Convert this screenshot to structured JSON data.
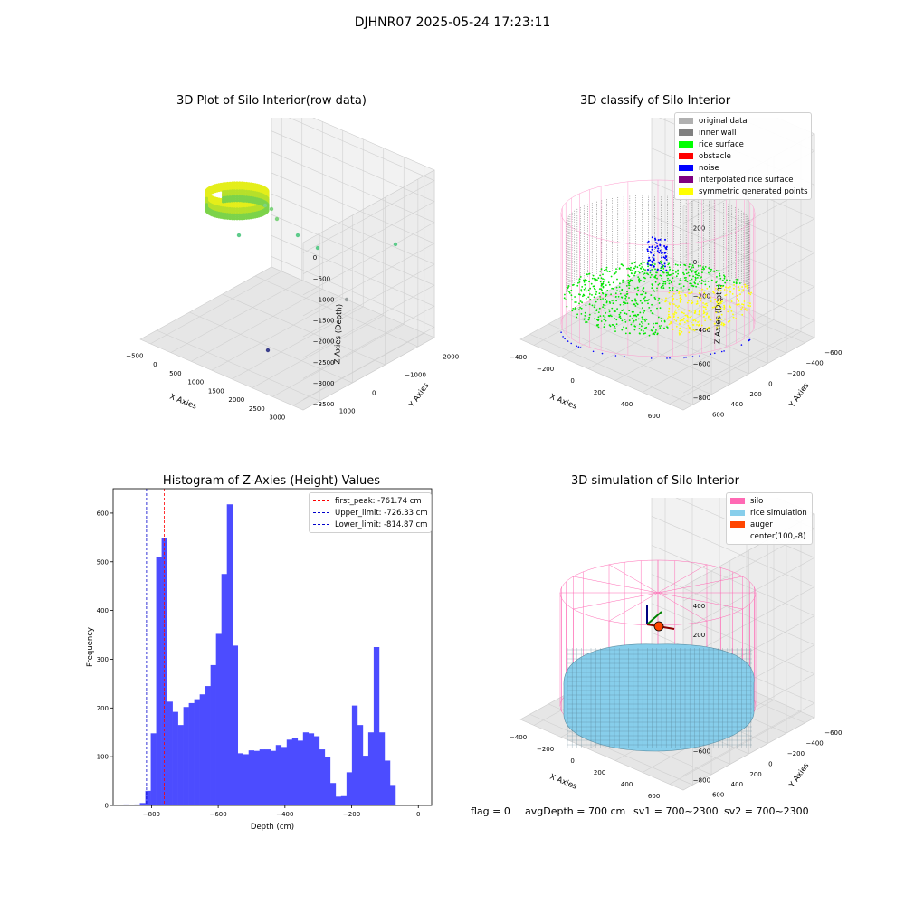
{
  "figure": {
    "suptitle": "DJHNR07 2025-05-24 17:23:11"
  },
  "panels": {
    "raw": {
      "title": "3D Plot of Silo Interior(row data)",
      "xlabel": "X Axies",
      "ylabel": "Y Axies",
      "zlabel": "Z Axies (Depth)",
      "x_ticks": [
        "−500",
        "0",
        "500",
        "1000",
        "1500",
        "2000",
        "2500",
        "3000"
      ],
      "y_ticks": [
        "−2000",
        "−1000",
        "0",
        "1000"
      ],
      "z_ticks": [
        "0",
        "−500",
        "−1000",
        "−1500",
        "−2000",
        "−2500",
        "−3000",
        "−3500"
      ]
    },
    "classify": {
      "title": "3D classify of Silo Interior",
      "xlabel": "X Axies",
      "ylabel": "Y Axies",
      "zlabel": "Z Axies (Depth)",
      "x_ticks": [
        "−400",
        "−200",
        "0",
        "200",
        "400",
        "600"
      ],
      "y_ticks": [
        "−600",
        "−400",
        "−200",
        "0",
        "200",
        "400",
        "600"
      ],
      "z_ticks": [
        "200",
        "0",
        "−200",
        "−400",
        "−600",
        "−800"
      ],
      "legend": [
        {
          "label": "original data",
          "color": "#b0b0b0"
        },
        {
          "label": "inner wall",
          "color": "#808080"
        },
        {
          "label": "rice surface",
          "color": "#00ff00"
        },
        {
          "label": "obstacle",
          "color": "#ff0000"
        },
        {
          "label": "noise",
          "color": "#0000ff"
        },
        {
          "label": "interpolated rice surface",
          "color": "#800080"
        },
        {
          "label": "symmetric generated points",
          "color": "#ffff00"
        }
      ]
    },
    "simulation": {
      "title": "3D simulation of Silo Interior",
      "xlabel": "X Axies",
      "ylabel": "Y Axies",
      "zlabel": "Z Axies (Depth)",
      "x_ticks": [
        "−400",
        "−200",
        "0",
        "200",
        "400",
        "600"
      ],
      "y_ticks": [
        "−600",
        "−400",
        "−200",
        "0",
        "200",
        "400",
        "600"
      ],
      "z_ticks": [
        "400",
        "200",
        "0",
        "−200",
        "−400",
        "−600",
        "−800"
      ],
      "legend": [
        {
          "label": "silo",
          "color": "#ff69b4"
        },
        {
          "label": "rice simulation",
          "color": "#87ceeb"
        },
        {
          "label": "auger",
          "color": "#ff4500"
        },
        {
          "label": "center(100,-8)",
          "color": ""
        }
      ],
      "footer": {
        "flag": "flag = 0",
        "avg": "avgDepth = 700 cm",
        "sv1": "sv1 = 700~2300",
        "sv2": "sv2 = 700~2300"
      }
    }
  },
  "chart_data": [
    {
      "type": "bar",
      "title": "Histogram of Z-Axies (Height) Values",
      "xlabel": "Depth (cm)",
      "ylabel": "Frequency",
      "xlim": [
        -915,
        40
      ],
      "ylim": [
        0,
        650
      ],
      "x_ticks": [
        -800,
        -600,
        -400,
        -200,
        0
      ],
      "y_ticks": [
        0,
        100,
        200,
        300,
        400,
        500,
        600
      ],
      "bar_color": "#4c4cff",
      "bin_width": 16.3,
      "bin_start": -900,
      "counts": [
        0,
        2,
        0,
        2,
        5,
        30,
        148,
        510,
        548,
        213,
        192,
        165,
        202,
        210,
        218,
        228,
        245,
        288,
        352,
        475,
        618,
        328,
        107,
        105,
        113,
        112,
        115,
        115,
        112,
        124,
        120,
        135,
        138,
        133,
        150,
        148,
        142,
        115,
        100,
        46,
        18,
        19,
        68,
        205,
        165,
        102,
        150,
        325,
        150,
        92,
        42
      ],
      "vlines": [
        {
          "label": "first_peak: -761.74 cm",
          "x": -761.74,
          "color": "#ff0000"
        },
        {
          "label": "Upper_limit: -726.33 cm",
          "x": -726.33,
          "color": "#0000cc"
        },
        {
          "label": "Lower_limit: -814.87 cm",
          "x": -814.87,
          "color": "#0000cc"
        }
      ]
    }
  ]
}
